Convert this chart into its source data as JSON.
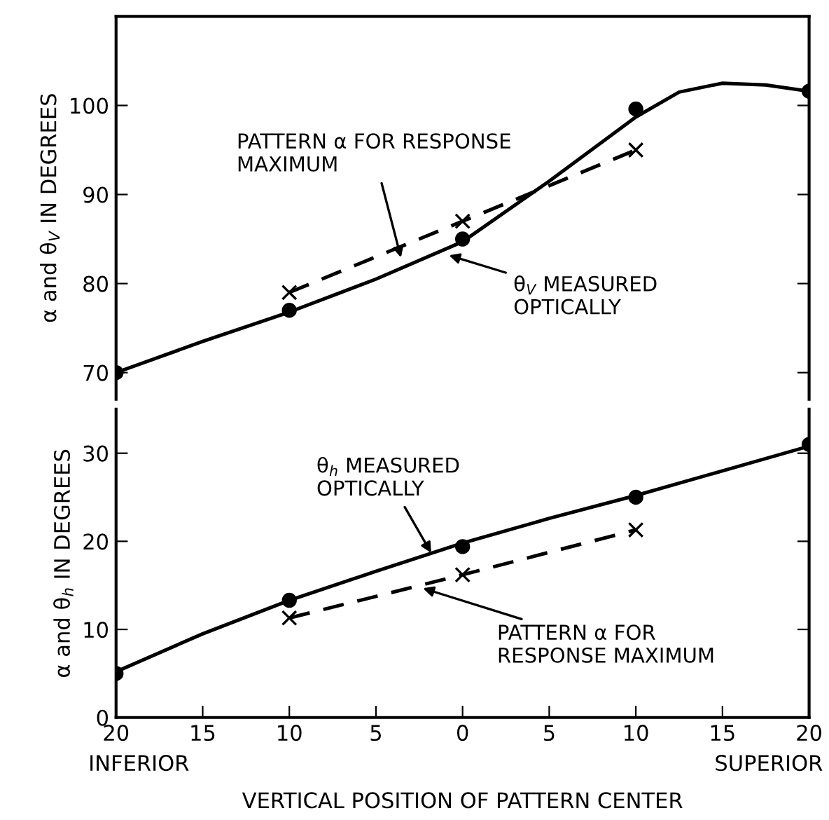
{
  "chart_data": [
    {
      "type": "line",
      "ylabel": "α and θ$_{V}$ IN DEGREES",
      "xlim": [
        -20,
        20
      ],
      "ylim": [
        67,
        110
      ],
      "yticks": [
        70,
        80,
        90,
        100
      ],
      "tick_labels": "y",
      "grid": false,
      "legend": false,
      "series": [
        {
          "color": "#000000",
          "marker": "none",
          "line_style": "solid",
          "x": [
            -20,
            -15,
            -10,
            -5,
            0,
            5,
            10,
            12.5,
            15,
            17.5,
            20
          ],
          "values": [
            70,
            73.5,
            76.8,
            80.5,
            84.7,
            91.5,
            98.7,
            101.5,
            102.5,
            102.3,
            101.6
          ]
        },
        {
          "type": "scatter",
          "color": "#000000",
          "marker": "circle",
          "x": [
            -20,
            -10,
            0,
            10,
            20
          ],
          "values": [
            70,
            77,
            85,
            99.6,
            101.6
          ]
        },
        {
          "color": "#000000",
          "marker": "cross",
          "line_style": "dashed",
          "x": [
            -10,
            0,
            10
          ],
          "values": [
            79,
            87,
            95
          ]
        }
      ],
      "annotations": [
        {
          "text": "PATTERN α FOR RESPONSE\nMAXIMUM",
          "x": -3.5,
          "y": 82.5
        },
        {
          "text": "θ$_{V}$ MEASURED\nOPTICALLY",
          "x": -1,
          "y": 83.3
        }
      ]
    },
    {
      "type": "line",
      "ylabel": "α and θ$_{h}$ IN DEGREES",
      "xlabel": "VERTICAL POSITION OF PATTERN CENTER",
      "xlim": [
        -20,
        20
      ],
      "ylim": [
        0,
        35
      ],
      "yticks": [
        0,
        10,
        20,
        30
      ],
      "grid": false,
      "legend": false,
      "xticks": [
        {
          "value": -20,
          "label": "20"
        },
        {
          "value": -15,
          "label": "15"
        },
        {
          "value": -10,
          "label": "10"
        },
        {
          "value": -5,
          "label": "5"
        },
        0,
        5,
        10,
        15,
        20
      ],
      "series": [
        {
          "color": "#000000",
          "marker": "none",
          "line_style": "solid",
          "x": [
            -20,
            -15,
            -10,
            -5,
            0,
            5,
            10,
            15,
            20
          ],
          "values": [
            5.2,
            9.5,
            13.3,
            16.6,
            19.8,
            22.6,
            25.2,
            28,
            30.8
          ]
        },
        {
          "type": "scatter",
          "color": "#000000",
          "marker": "circle",
          "x": [
            -20,
            -10,
            0,
            10,
            20
          ],
          "values": [
            5,
            13.3,
            19.4,
            25,
            31
          ]
        },
        {
          "color": "#000000",
          "marker": "cross",
          "line_style": "dashed",
          "x": [
            -10,
            0,
            10
          ],
          "values": [
            11.3,
            16.2,
            21.3
          ]
        }
      ],
      "annotations": [
        {
          "text": "θ$_{h}$ MEASURED\nOPTICALLY",
          "x": -1.7,
          "y": 18.3
        },
        {
          "text": "PATTERN α FOR\nRESPONSE MAXIMUM",
          "x": -2.5,
          "y": 14.8
        },
        "INFERIOR",
        "SUPERIOR"
      ]
    }
  ]
}
